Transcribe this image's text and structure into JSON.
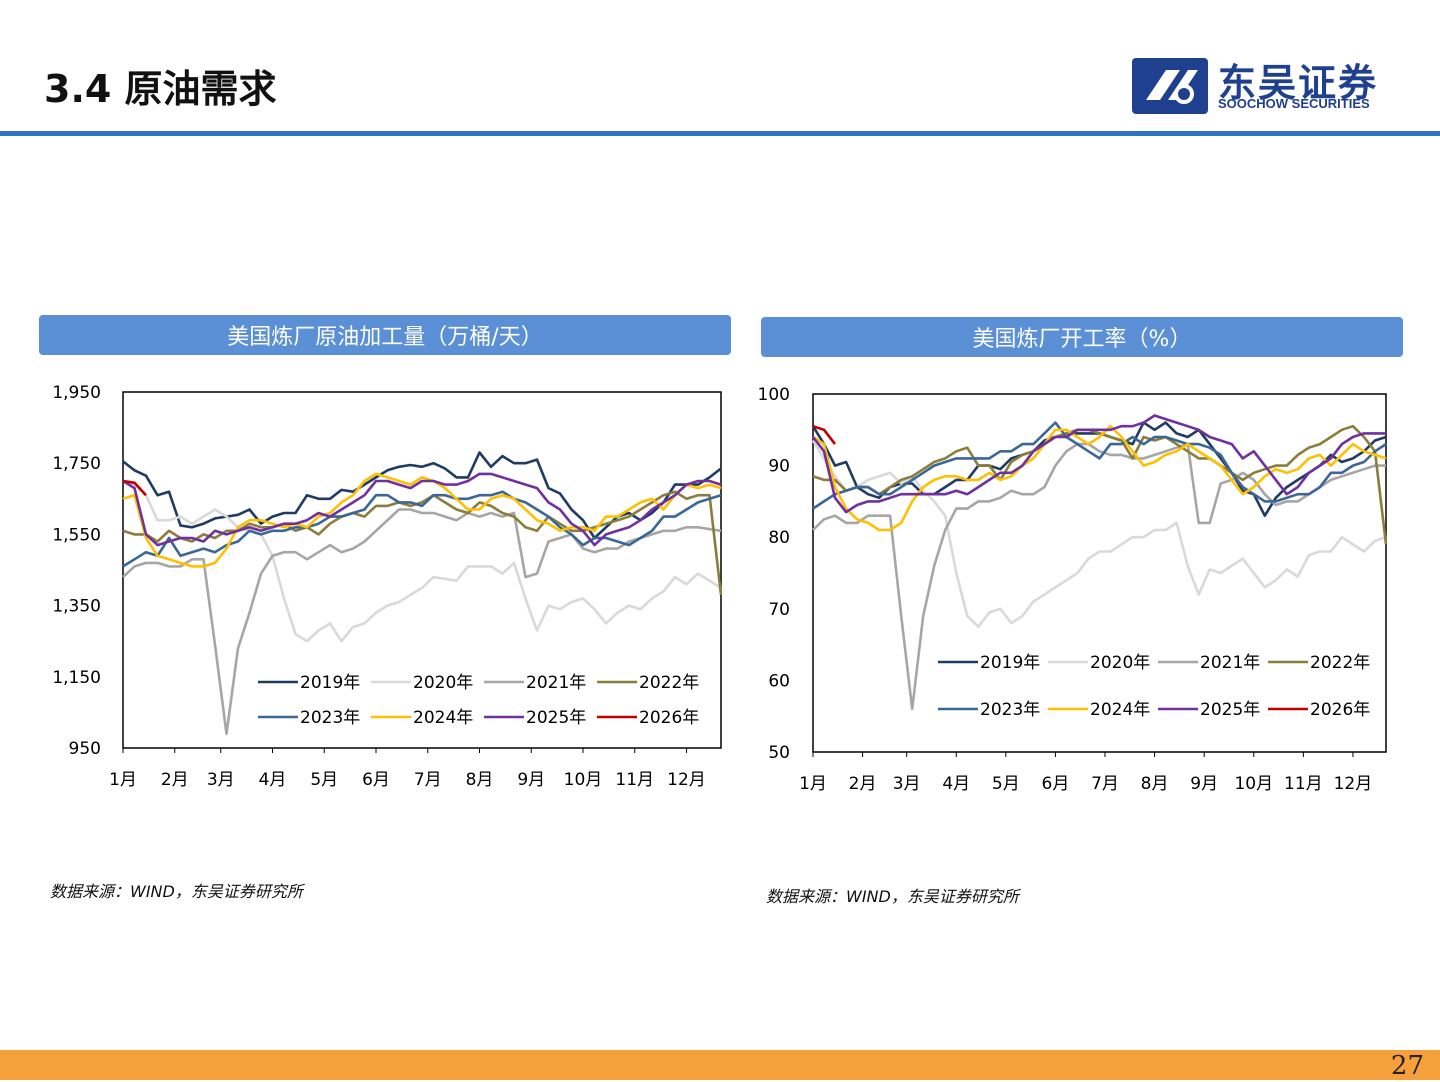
{
  "header": {
    "title": "3.4 原油需求",
    "logo_cn": "东吴证券",
    "logo_en": "SOOCHOW SECURITIES"
  },
  "colors": {
    "accent_blue": "#2f72c4",
    "banner_blue": "#5b8fd6",
    "footer_orange": "#f5a03b",
    "logo_blue": "#1f3f8f"
  },
  "footer": {
    "page_number": "27"
  },
  "chart_data": [
    {
      "id": "throughput",
      "type": "line",
      "title": "美国炼厂原油加工量（万桶/天）",
      "source": "数据来源：WIND，东吴证券研究所",
      "ylim": [
        950,
        1950
      ],
      "yticks": [
        "1,950",
        "1,750",
        "1,550",
        "1,350",
        "1,150",
        "950"
      ],
      "ytick_values": [
        1950,
        1750,
        1550,
        1350,
        1150,
        950
      ],
      "xlim": [
        1,
        53
      ],
      "xticks": [
        "1月",
        "2月",
        "3月",
        "4月",
        "5月",
        "6月",
        "7月",
        "8月",
        "9月",
        "10月",
        "11月",
        "12月"
      ],
      "xtick_weeks": [
        1,
        5.5,
        9.5,
        14,
        18.5,
        23,
        27.5,
        32,
        36.5,
        41,
        45.5,
        50
      ],
      "legend_position": "bottom-right inside",
      "series": [
        {
          "name": "2019年",
          "color": "#1f3b64",
          "values": [
            1755,
            1730,
            1715,
            1660,
            1670,
            1575,
            1570,
            1580,
            1595,
            1600,
            1605,
            1620,
            1580,
            1600,
            1610,
            1610,
            1660,
            1650,
            1650,
            1675,
            1670,
            1690,
            1710,
            1730,
            1740,
            1745,
            1740,
            1750,
            1735,
            1710,
            1710,
            1780,
            1740,
            1770,
            1750,
            1750,
            1760,
            1680,
            1665,
            1620,
            1590,
            1540,
            1570,
            1600,
            1610,
            1590,
            1610,
            1640,
            1690,
            1690,
            1690,
            1710,
            1735
          ]
        },
        {
          "name": "2020年",
          "color": "#d9d9d9",
          "values": [
            1700,
            1690,
            1660,
            1590,
            1590,
            1600,
            1580,
            1600,
            1620,
            1600,
            1570,
            1560,
            1550,
            1490,
            1370,
            1270,
            1250,
            1280,
            1300,
            1250,
            1290,
            1300,
            1330,
            1350,
            1360,
            1380,
            1400,
            1430,
            1425,
            1420,
            1460,
            1460,
            1460,
            1440,
            1470,
            1370,
            1280,
            1350,
            1340,
            1360,
            1370,
            1340,
            1300,
            1330,
            1350,
            1340,
            1370,
            1390,
            1430,
            1410,
            1440,
            1420,
            1400
          ]
        },
        {
          "name": "2021年",
          "color": "#a6a6a6",
          "values": [
            1430,
            1460,
            1470,
            1470,
            1460,
            1460,
            1480,
            1480,
            1240,
            990,
            1230,
            1330,
            1440,
            1490,
            1500,
            1500,
            1480,
            1500,
            1520,
            1500,
            1510,
            1530,
            1560,
            1590,
            1620,
            1620,
            1610,
            1610,
            1600,
            1590,
            1610,
            1600,
            1610,
            1600,
            1610,
            1430,
            1440,
            1530,
            1540,
            1550,
            1510,
            1500,
            1510,
            1510,
            1530,
            1540,
            1550,
            1560,
            1560,
            1570,
            1570,
            1565,
            1560
          ]
        },
        {
          "name": "2022年",
          "color": "#8b7d3a",
          "values": [
            1560,
            1550,
            1550,
            1530,
            1560,
            1540,
            1530,
            1550,
            1540,
            1560,
            1560,
            1580,
            1570,
            1570,
            1580,
            1560,
            1570,
            1550,
            1580,
            1600,
            1610,
            1600,
            1630,
            1630,
            1640,
            1630,
            1640,
            1660,
            1640,
            1620,
            1610,
            1640,
            1630,
            1610,
            1600,
            1570,
            1560,
            1600,
            1580,
            1560,
            1560,
            1570,
            1580,
            1590,
            1600,
            1620,
            1640,
            1660,
            1670,
            1650,
            1660,
            1660,
            1380
          ]
        },
        {
          "name": "2023年",
          "color": "#3a6796",
          "values": [
            1460,
            1480,
            1500,
            1490,
            1540,
            1490,
            1500,
            1510,
            1500,
            1520,
            1530,
            1560,
            1550,
            1560,
            1560,
            1570,
            1570,
            1580,
            1600,
            1600,
            1610,
            1620,
            1660,
            1660,
            1640,
            1640,
            1630,
            1660,
            1660,
            1650,
            1650,
            1660,
            1660,
            1670,
            1650,
            1640,
            1620,
            1600,
            1570,
            1550,
            1520,
            1540,
            1540,
            1530,
            1520,
            1540,
            1560,
            1600,
            1600,
            1620,
            1640,
            1650,
            1660
          ]
        },
        {
          "name": "2024年",
          "color": "#ffc000",
          "values": [
            1650,
            1660,
            1540,
            1490,
            1480,
            1470,
            1460,
            1460,
            1470,
            1510,
            1570,
            1590,
            1590,
            1580,
            1570,
            1580,
            1570,
            1600,
            1610,
            1640,
            1660,
            1700,
            1720,
            1710,
            1700,
            1690,
            1710,
            1700,
            1680,
            1650,
            1620,
            1620,
            1650,
            1660,
            1650,
            1620,
            1590,
            1580,
            1560,
            1570,
            1570,
            1560,
            1600,
            1600,
            1620,
            1640,
            1650,
            1620,
            1660,
            1690,
            1680,
            1690,
            1680
          ]
        },
        {
          "name": "2025年",
          "color": "#7030a0",
          "values": [
            1700,
            1680,
            1550,
            1520,
            1530,
            1540,
            1540,
            1530,
            1560,
            1550,
            1560,
            1570,
            1560,
            1570,
            1580,
            1580,
            1590,
            1610,
            1600,
            1620,
            1640,
            1660,
            1700,
            1700,
            1690,
            1680,
            1700,
            1700,
            1690,
            1690,
            1700,
            1720,
            1720,
            1710,
            1700,
            1690,
            1680,
            1640,
            1620,
            1580,
            1560,
            1520,
            1550,
            1560,
            1570,
            1590,
            1620,
            1640,
            1660,
            1690,
            1700,
            1700,
            1690
          ]
        },
        {
          "name": "2026年",
          "color": "#c00000",
          "values": [
            1700,
            1695,
            1660
          ]
        }
      ]
    },
    {
      "id": "utilization",
      "type": "line",
      "title": "美国炼厂开工率（%）",
      "source": "数据来源：WIND，东吴证券研究所",
      "ylim": [
        50,
        100
      ],
      "yticks": [
        "100",
        "90",
        "80",
        "70",
        "60",
        "50"
      ],
      "ytick_values": [
        100,
        90,
        80,
        70,
        60,
        50
      ],
      "xlim": [
        1,
        53
      ],
      "xticks": [
        "1月",
        "2月",
        "3月",
        "4月",
        "5月",
        "6月",
        "7月",
        "8月",
        "9月",
        "10月",
        "11月",
        "12月"
      ],
      "xtick_weeks": [
        1,
        5.5,
        9.5,
        14,
        18.5,
        23,
        27.5,
        32,
        36.5,
        41,
        45.5,
        50
      ],
      "legend_position": "bottom-right inside",
      "series": [
        {
          "name": "2019年",
          "color": "#1f3b64",
          "values": [
            95.5,
            93,
            90,
            90.5,
            87,
            86,
            85.5,
            87,
            87.5,
            87.5,
            86,
            86,
            87,
            88,
            88,
            90,
            90,
            89.5,
            91,
            91.5,
            92,
            93.5,
            94,
            94.5,
            94.5,
            94.5,
            94.5,
            94,
            93.5,
            93,
            96,
            95,
            96,
            94.5,
            94,
            95,
            93,
            91,
            89,
            86.5,
            86,
            83,
            85.5,
            87,
            88,
            89,
            90,
            91.5,
            90.5,
            91,
            92,
            93.5,
            94
          ]
        },
        {
          "name": "2020年",
          "color": "#d9d9d9",
          "values": [
            93.5,
            91,
            88.5,
            86.5,
            87,
            88,
            88.5,
            89,
            87.5,
            88.5,
            86.5,
            85,
            83,
            75,
            69,
            67.5,
            69.5,
            70,
            68,
            69,
            71,
            72,
            73,
            74,
            75,
            77,
            78,
            78,
            79,
            80,
            80,
            81,
            81,
            82,
            76,
            72,
            75.5,
            75,
            76,
            77,
            75,
            73,
            74,
            75.5,
            74.5,
            77.5,
            78,
            78,
            80,
            79,
            78,
            79.5,
            80
          ]
        },
        {
          "name": "2021年",
          "color": "#a6a6a6",
          "values": [
            81,
            82.5,
            83,
            82,
            82,
            83,
            83,
            83,
            69,
            56,
            69,
            76,
            81,
            84,
            84,
            85,
            85,
            85.5,
            86.5,
            86,
            86,
            87,
            90,
            92,
            93,
            93,
            92,
            91.5,
            91.5,
            91,
            91,
            91.5,
            92,
            92.5,
            93,
            82,
            82,
            87.5,
            88,
            89,
            88,
            86,
            84.5,
            85,
            85,
            86,
            87,
            88,
            88.5,
            89,
            89.5,
            90,
            90
          ]
        },
        {
          "name": "2022年",
          "color": "#8b7d3a",
          "values": [
            88.5,
            88,
            88,
            86.5,
            87,
            87,
            86,
            87,
            88,
            88.5,
            89.5,
            90.5,
            91,
            92,
            92.5,
            90,
            90,
            88,
            90.5,
            91.5,
            92,
            93,
            94,
            94.5,
            95,
            95,
            94.5,
            94,
            93.5,
            91,
            94,
            93.5,
            94,
            93,
            92,
            91,
            91,
            90,
            89,
            88,
            89,
            89.5,
            90,
            90,
            91.5,
            92.5,
            93,
            94,
            95,
            95.5,
            94,
            92,
            79
          ]
        },
        {
          "name": "2023年",
          "color": "#3a6796",
          "values": [
            84,
            85,
            86,
            86.5,
            87,
            87,
            86,
            86,
            87,
            88,
            89,
            90,
            90.5,
            91,
            91,
            91,
            91,
            92,
            92,
            93,
            93,
            94.5,
            96,
            94,
            93,
            92,
            91,
            93,
            93,
            94,
            93,
            94,
            94,
            93.5,
            93,
            93,
            92.5,
            91.5,
            89,
            87,
            86,
            85,
            85,
            85.5,
            86,
            86,
            87,
            89,
            89,
            90,
            90.5,
            92,
            93
          ]
        },
        {
          "name": "2024年",
          "color": "#ffc000",
          "values": [
            94,
            93,
            87,
            84,
            82.5,
            82,
            81,
            81,
            82,
            85,
            87,
            88,
            88.5,
            88.5,
            88,
            88,
            89,
            88,
            88.5,
            90,
            91,
            93,
            95,
            95,
            94,
            93,
            94,
            95.5,
            94,
            92,
            90,
            90.5,
            91.5,
            92,
            93,
            92,
            91,
            90,
            88,
            86,
            87,
            88.5,
            89.5,
            89,
            89.5,
            91,
            91.5,
            90,
            91.5,
            93,
            92,
            91.5,
            91
          ]
        },
        {
          "name": "2025年",
          "color": "#7030a0",
          "values": [
            94,
            92,
            85.5,
            83.5,
            84.5,
            85,
            85,
            85.5,
            86,
            86,
            86,
            86,
            86,
            86.5,
            86,
            87,
            88,
            89,
            89,
            90,
            92,
            93,
            94,
            94,
            95,
            95,
            95,
            95,
            95.5,
            95.5,
            96,
            97,
            96.5,
            96,
            95.5,
            95,
            94,
            93.5,
            93,
            91,
            92,
            90,
            88,
            86,
            87,
            89,
            90,
            91,
            93,
            94,
            94.5,
            94.5,
            94.5
          ]
        },
        {
          "name": "2026年",
          "color": "#c00000",
          "values": [
            95.5,
            95,
            93
          ]
        }
      ]
    }
  ]
}
